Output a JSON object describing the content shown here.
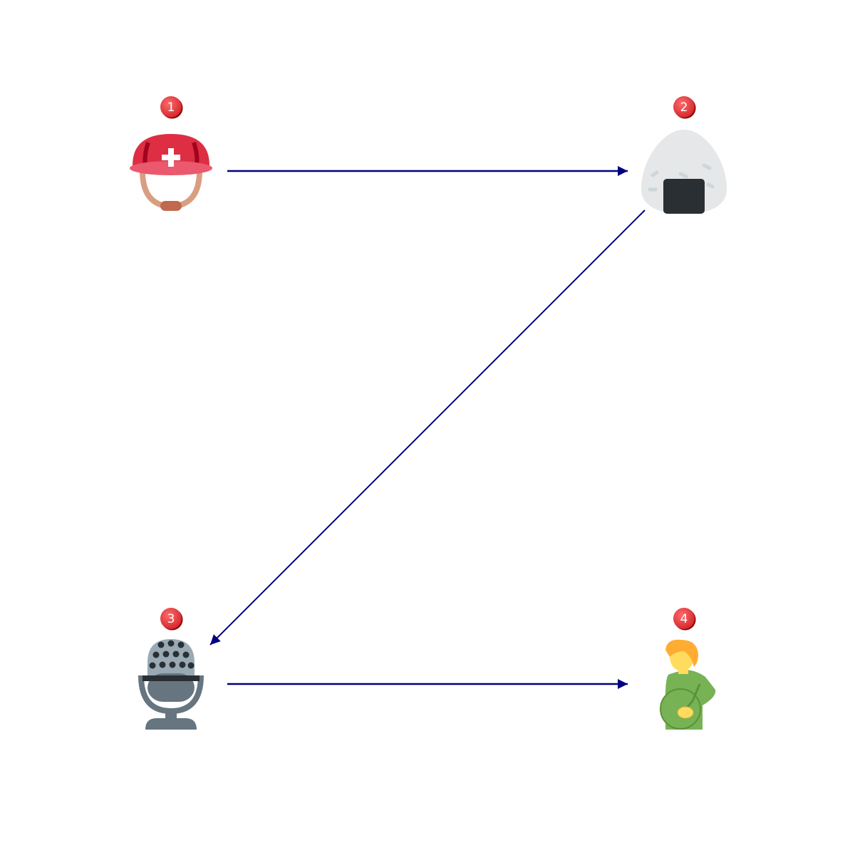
{
  "diagram": {
    "edge_color": "#000080",
    "badge_color": "#e8373c",
    "nodes": [
      {
        "id": "n1",
        "label": "1",
        "icon": "rescue-worker-helmet-icon"
      },
      {
        "id": "n2",
        "label": "2",
        "icon": "rice-ball-icon"
      },
      {
        "id": "n3",
        "label": "3",
        "icon": "studio-microphone-icon"
      },
      {
        "id": "n4",
        "label": "4",
        "icon": "pregnant-man-icon"
      }
    ],
    "edges": [
      {
        "from": "n1",
        "to": "n2"
      },
      {
        "from": "n2",
        "to": "n3"
      },
      {
        "from": "n3",
        "to": "n4"
      }
    ]
  }
}
